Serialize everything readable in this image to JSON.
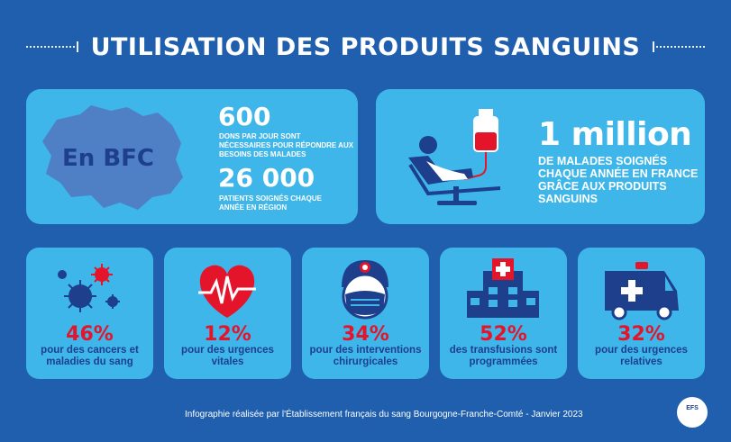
{
  "title": "UTILISATION DES PRODUITS SANGUINS",
  "bfc": {
    "label": "En BFC",
    "stat1": {
      "value": "600",
      "text": "DONS PAR JOUR SONT NÉCESSAIRES POUR RÉPONDRE AUX BESOINS DES MALADES"
    },
    "stat2": {
      "value": "26 000",
      "text": "PATIENTS SOIGNÉS CHAQUE ANNÉE EN RÉGION"
    }
  },
  "france": {
    "value": "1 million",
    "text": "DE MALADES SOIGNÉS CHAQUE ANNÉE EN FRANCE GRÂCE AUX PRODUITS SANGUINS"
  },
  "uses": [
    {
      "pct": "46%",
      "desc": "pour des cancers et maladies du sang",
      "icon": "virus-cells-icon"
    },
    {
      "pct": "12%",
      "desc": "pour des urgences vitales",
      "icon": "heart-pulse-icon"
    },
    {
      "pct": "34%",
      "desc": "pour des interventions chirurgicales",
      "icon": "surgeon-icon"
    },
    {
      "pct": "52%",
      "desc": "des transfusions sont programmées",
      "icon": "hospital-icon"
    },
    {
      "pct": "32%",
      "desc": "pour des urgences relatives",
      "icon": "ambulance-icon"
    }
  ],
  "footer": "Infographie réalisée par l'Établissement français du sang Bourgogne-Franche-Comté - Janvier 2023",
  "logo": "EFS",
  "colors": {
    "background": "#1f5fae",
    "card": "#3eb6ea",
    "accent": "#e4152b",
    "dark": "#1d3f8c"
  }
}
